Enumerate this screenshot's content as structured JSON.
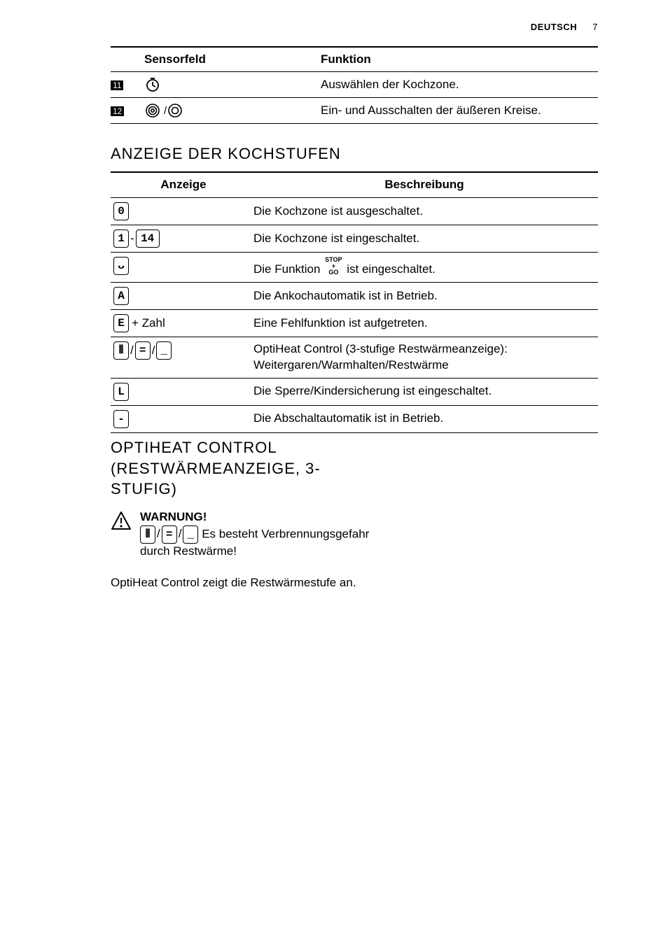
{
  "header": {
    "lang_label": "DEUTSCH",
    "page_number": "7"
  },
  "sensor_table": {
    "headers": {
      "sensor": "Sensorfeld",
      "func": "Funktion"
    },
    "rows": [
      {
        "num": "11",
        "icon": "timer",
        "func": "Auswählen der Kochzone."
      },
      {
        "num": "12",
        "icon": "rings",
        "func": "Ein- und Ausschalten der äußeren Kreise."
      }
    ]
  },
  "section_display_title": "ANZEIGE DER KOCHSTUFEN",
  "display_table": {
    "headers": {
      "anzeige": "Anzeige",
      "beschreibung": "Beschreibung"
    },
    "rows": [
      {
        "display": [
          {
            "t": "seg",
            "v": "0"
          }
        ],
        "desc": "Die Kochzone ist ausgeschaltet."
      },
      {
        "display": [
          {
            "t": "seg",
            "v": "1"
          },
          {
            "t": "sep",
            "v": "-"
          },
          {
            "t": "seg",
            "v": "14",
            "w": 34
          }
        ],
        "desc": "Die Kochzone ist eingeschaltet."
      },
      {
        "display": [
          {
            "t": "seg",
            "v": "ᴗ"
          }
        ],
        "desc_pre": "Die Funktion ",
        "desc_suf": " ist eingeschaltet.",
        "stopgo": true
      },
      {
        "display": [
          {
            "t": "seg",
            "v": "A"
          }
        ],
        "desc": "Die Ankochautomatik ist in Betrieb."
      },
      {
        "display": [
          {
            "t": "seg",
            "v": "E"
          },
          {
            "t": "text",
            "v": "+ Zahl"
          }
        ],
        "desc": "Eine Fehlfunktion ist aufgetreten."
      },
      {
        "display": [
          {
            "t": "seg",
            "v": "⦀"
          },
          {
            "t": "sep",
            "v": "/"
          },
          {
            "t": "seg",
            "v": "="
          },
          {
            "t": "sep",
            "v": "/"
          },
          {
            "t": "seg",
            "v": "_"
          }
        ],
        "desc": "OptiHeat Control (3-stufige Restwärmeanzeige): Weitergaren/Warmhalten/Restwärme"
      },
      {
        "display": [
          {
            "t": "seg",
            "v": "L"
          }
        ],
        "desc": "Die Sperre/Kindersicherung ist eingeschaltet."
      },
      {
        "display": [
          {
            "t": "seg",
            "v": "-"
          }
        ],
        "desc": "Die Abschaltautomatik ist in Betrieb."
      }
    ]
  },
  "section_optiheat_title_lines": [
    "OPTIHEAT CONTROL",
    "(RESTWÄRMEANZEIGE, 3-",
    "STUFIG)"
  ],
  "warning": {
    "title": "WARNUNG!",
    "segs": [
      {
        "t": "seg",
        "v": "⦀"
      },
      {
        "t": "sep",
        "v": "/"
      },
      {
        "t": "seg",
        "v": "="
      },
      {
        "t": "sep",
        "v": "/"
      },
      {
        "t": "seg",
        "v": "_"
      }
    ],
    "text": " Es besteht Verbrennungsgefahr durch Restwärme!"
  },
  "body_paragraph": "OptiHeat Control zeigt die Restwärmestufe an.",
  "stopgo_lines": [
    "STOP",
    "+",
    "GO"
  ]
}
